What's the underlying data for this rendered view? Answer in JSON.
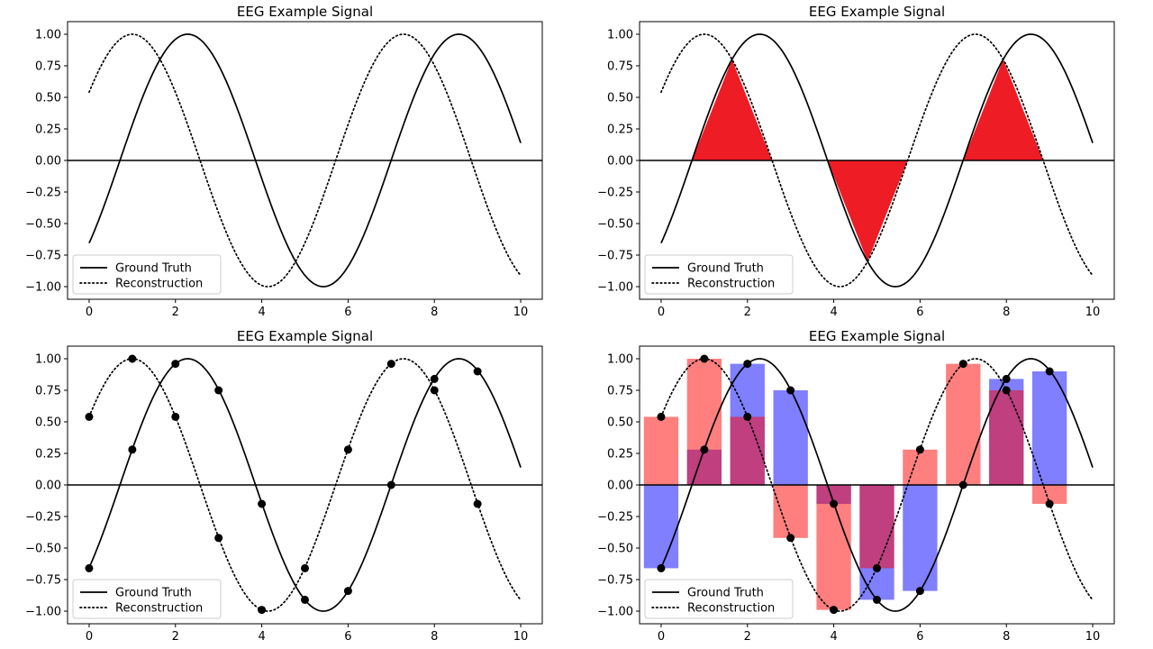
{
  "figure": {
    "title": "EEG Example Signal",
    "legend": [
      "Ground Truth",
      "Reconstruction"
    ],
    "legend_position": "lower-left"
  },
  "chart_data": [
    {
      "type": "line",
      "panel": "top-left",
      "title": "EEG Example Signal",
      "xlabel": "",
      "ylabel": "",
      "xlim": [
        -0.5,
        10.5
      ],
      "ylim": [
        -1.1,
        1.1
      ],
      "xticks": [
        0,
        2,
        4,
        6,
        8,
        10
      ],
      "yticks": [
        1.0,
        0.75,
        0.5,
        0.25,
        0.0,
        -0.25,
        -0.5,
        -0.75,
        -1.0
      ],
      "ytick_labels": [
        "1.00",
        "0.75",
        "0.50",
        "0.25",
        "0.00",
        "−0.25",
        "−0.50",
        "−0.75",
        "−1.00"
      ],
      "grid": false,
      "legend": "lower-left",
      "zero_line": true,
      "series": [
        {
          "name": "Ground Truth",
          "style": "solid",
          "function": "sin(x - 0.714)",
          "x_range": [
            0,
            10
          ]
        },
        {
          "name": "Reconstruction",
          "style": "dotted",
          "function": "sin(x + 0.571)",
          "x_range": [
            0,
            10
          ]
        }
      ]
    },
    {
      "type": "line",
      "panel": "top-right",
      "title": "EEG Example Signal",
      "xlabel": "",
      "ylabel": "",
      "xlim": [
        -0.5,
        10.5
      ],
      "ylim": [
        -1.1,
        1.1
      ],
      "xticks": [
        0,
        2,
        4,
        6,
        8,
        10
      ],
      "yticks": [
        1.0,
        0.75,
        0.5,
        0.25,
        0.0,
        -0.25,
        -0.5,
        -0.75,
        -1.0
      ],
      "ytick_labels": [
        "1.00",
        "0.75",
        "0.50",
        "0.25",
        "0.00",
        "−0.25",
        "−0.50",
        "−0.75",
        "−1.00"
      ],
      "grid": false,
      "legend": "lower-left",
      "zero_line": true,
      "series": [
        {
          "name": "Ground Truth",
          "style": "solid",
          "function": "sin(x - 0.714)",
          "x_range": [
            0,
            10
          ]
        },
        {
          "name": "Reconstruction",
          "style": "dotted",
          "function": "sin(x + 0.571)",
          "x_range": [
            0,
            10
          ]
        }
      ],
      "shaded_regions": {
        "color": "#ee1c25",
        "regions": [
          {
            "x_from": 0.714,
            "x_to": 2.57
          },
          {
            "x_from": 3.856,
            "x_to": 5.712
          },
          {
            "x_from": 6.998,
            "x_to": 8.854
          }
        ]
      }
    },
    {
      "type": "scatter",
      "panel": "bottom-left",
      "title": "EEG Example Signal",
      "xlabel": "",
      "ylabel": "",
      "xlim": [
        -0.5,
        10.5
      ],
      "ylim": [
        -1.1,
        1.1
      ],
      "xticks": [
        0,
        2,
        4,
        6,
        8,
        10
      ],
      "yticks": [
        1.0,
        0.75,
        0.5,
        0.25,
        0.0,
        -0.25,
        -0.5,
        -0.75,
        -1.0
      ],
      "ytick_labels": [
        "1.00",
        "0.75",
        "0.50",
        "0.25",
        "0.00",
        "−0.25",
        "−0.50",
        "−0.75",
        "−1.00"
      ],
      "grid": false,
      "legend": "lower-left",
      "zero_line": true,
      "series": [
        {
          "name": "Ground Truth",
          "style": "solid",
          "function": "sin(x - 0.714)",
          "x_range": [
            0,
            10
          ]
        },
        {
          "name": "Reconstruction",
          "style": "dotted",
          "function": "sin(x + 0.571)",
          "x_range": [
            0,
            10
          ]
        }
      ],
      "samples": {
        "x": [
          0,
          1,
          2,
          3,
          4,
          5,
          6,
          7,
          8,
          9
        ],
        "ground_truth": [
          -0.66,
          0.28,
          0.96,
          0.75,
          -0.15,
          -0.91,
          -0.84,
          0.0,
          0.84,
          0.9
        ],
        "reconstruction": [
          0.54,
          1.0,
          0.54,
          -0.42,
          -0.99,
          -0.66,
          0.28,
          0.96,
          0.75,
          -0.15
        ]
      }
    },
    {
      "type": "bar",
      "panel": "bottom-right",
      "title": "EEG Example Signal",
      "xlabel": "",
      "ylabel": "",
      "xlim": [
        -0.5,
        10.5
      ],
      "ylim": [
        -1.1,
        1.1
      ],
      "xticks": [
        0,
        2,
        4,
        6,
        8,
        10
      ],
      "yticks": [
        1.0,
        0.75,
        0.5,
        0.25,
        0.0,
        -0.25,
        -0.5,
        -0.75,
        -1.0
      ],
      "ytick_labels": [
        "1.00",
        "0.75",
        "0.50",
        "0.25",
        "0.00",
        "−0.25",
        "−0.50",
        "−0.75",
        "−1.00"
      ],
      "grid": false,
      "legend": "lower-left",
      "zero_line": true,
      "bar_width": 0.8,
      "bar_colors": {
        "ground_truth": "#0000ff",
        "reconstruction": "#ff0000",
        "alpha": 0.5
      },
      "series": [
        {
          "name": "Ground Truth",
          "style": "solid",
          "function": "sin(x - 0.714)",
          "x_range": [
            0,
            10
          ]
        },
        {
          "name": "Reconstruction",
          "style": "dotted",
          "function": "sin(x + 0.571)",
          "x_range": [
            0,
            10
          ]
        }
      ],
      "samples": {
        "x": [
          0,
          1,
          2,
          3,
          4,
          5,
          6,
          7,
          8,
          9
        ],
        "ground_truth": [
          -0.66,
          0.28,
          0.96,
          0.75,
          -0.15,
          -0.91,
          -0.84,
          0.0,
          0.84,
          0.9
        ],
        "reconstruction": [
          0.54,
          1.0,
          0.54,
          -0.42,
          -0.99,
          -0.66,
          0.28,
          0.96,
          0.75,
          -0.15
        ]
      }
    }
  ]
}
